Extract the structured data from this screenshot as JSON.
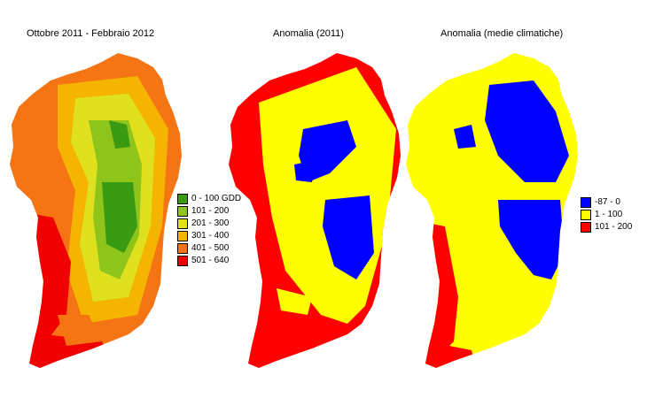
{
  "panels": [
    {
      "title": "Ottobre 2011 - Febbraio 2012",
      "legend": [
        {
          "label": "0 - 100 GDD",
          "color": "#3a9b12"
        },
        {
          "label": "101 - 200",
          "color": "#8fc41a"
        },
        {
          "label": "201 - 300",
          "color": "#dfe11e"
        },
        {
          "label": "301 - 400",
          "color": "#f5b400"
        },
        {
          "label": "401 - 500",
          "color": "#f57515"
        },
        {
          "label": "501 - 640",
          "color": "#f00000"
        }
      ]
    },
    {
      "title": "Anomalia (2011)"
    },
    {
      "title": "Anomalia (medie climatiche)",
      "legend": [
        {
          "label": "-87 - 0",
          "color": "#0000ff"
        },
        {
          "label": "1 - 100",
          "color": "#ffff00"
        },
        {
          "label": "101 - 200",
          "color": "#ff0000"
        }
      ]
    }
  ]
}
